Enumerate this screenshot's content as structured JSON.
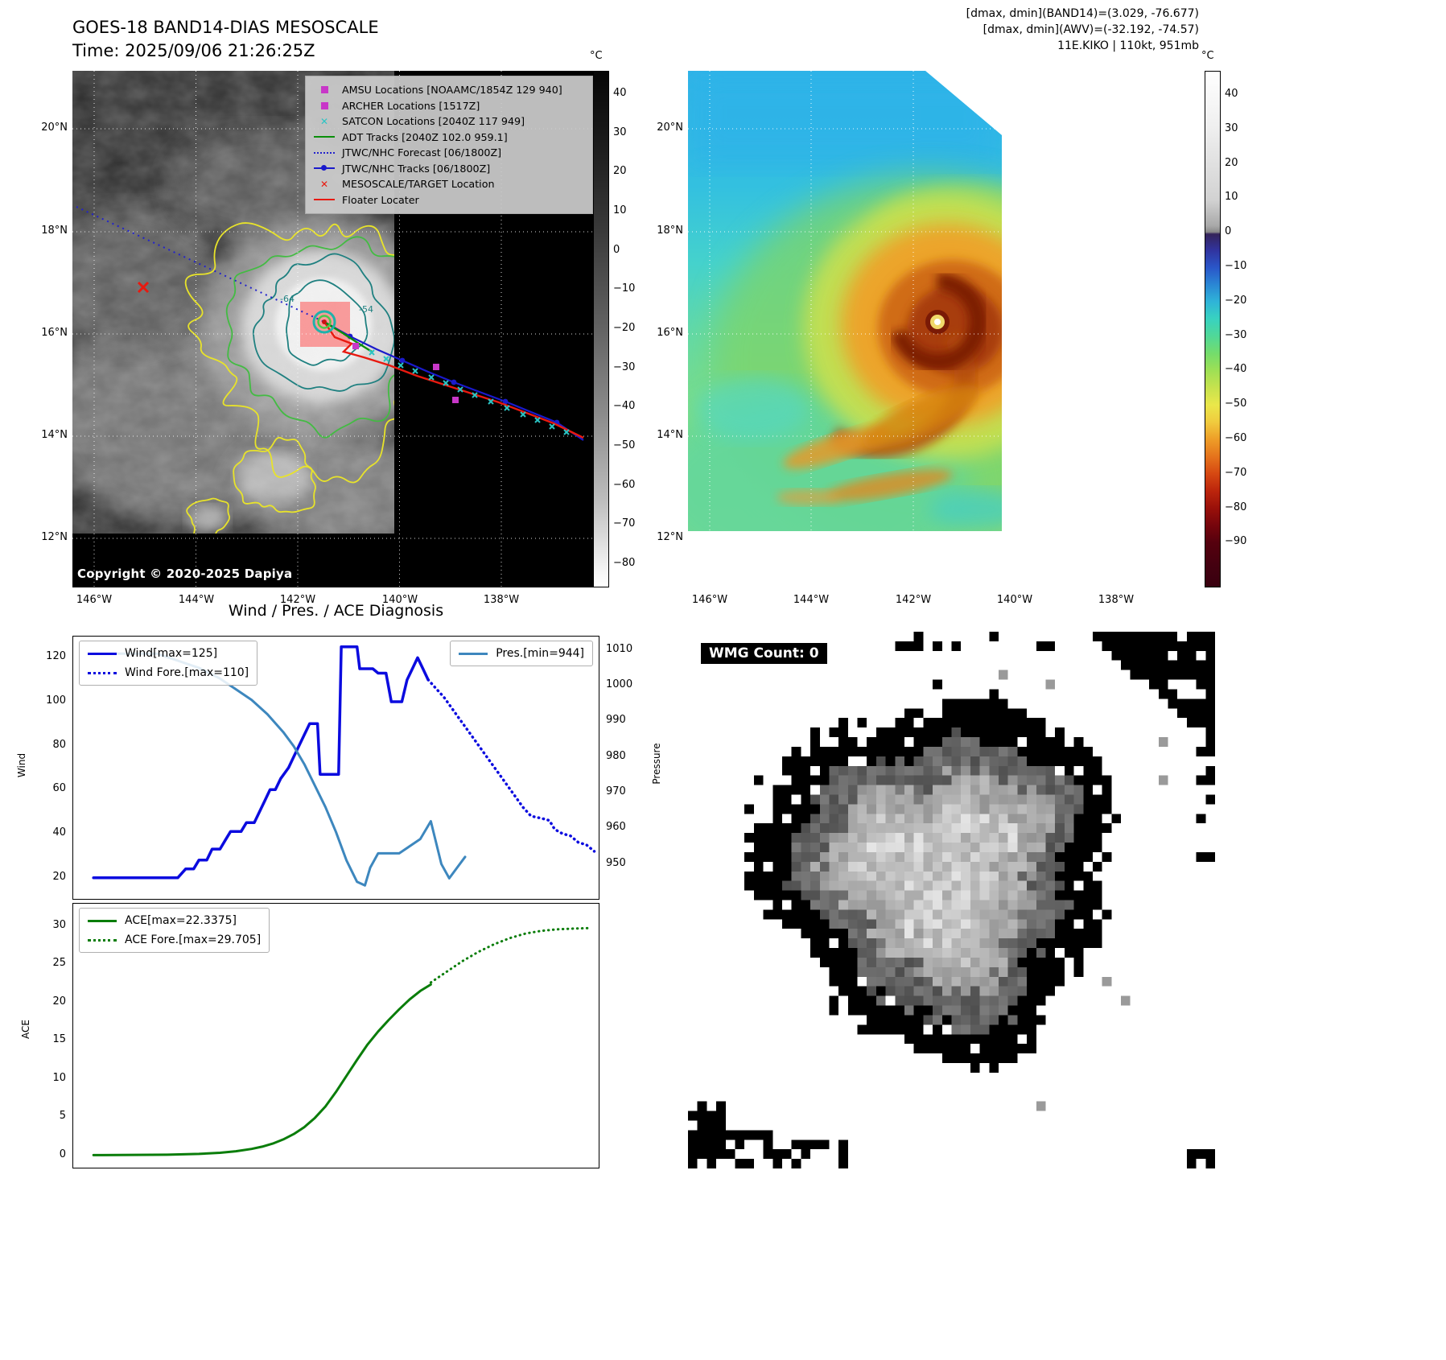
{
  "panel_ir": {
    "title": "GOES-18 BAND14-DIAS MESOSCALE",
    "time_line": "Time: 2025/09/06 21:26:25Z",
    "copyright": "Copyright © 2020-2025 Dapiya",
    "colorbar": {
      "unit": "°C",
      "ticks": [
        40,
        30,
        20,
        10,
        0,
        -10,
        -20,
        -30,
        -40,
        -50,
        -60,
        -70,
        -80
      ]
    },
    "lat_ticks": [
      "20°N",
      "18°N",
      "16°N",
      "14°N",
      "12°N"
    ],
    "lon_ticks": [
      "146°W",
      "144°W",
      "142°W",
      "140°W",
      "138°W"
    ],
    "contour_labels": {
      "inner": "-64",
      "outer": "-54"
    },
    "legend": [
      {
        "marker": "square",
        "color": "#c837c8",
        "label": "AMSU Locations [NOAAMC/1854Z 129 940]"
      },
      {
        "marker": "square",
        "color": "#c837c8",
        "label": "ARCHER Locations [1517Z]"
      },
      {
        "marker": "x",
        "color": "#2ac4c4",
        "label": "SATCON Locations [2040Z 117 949]"
      },
      {
        "marker": "line",
        "color": "#0a8f0a",
        "label": "ADT Tracks [2040Z 102.0 959.1]"
      },
      {
        "marker": "dline",
        "color": "#2222cc",
        "label": "JTWC/NHC Forecast [06/1800Z]"
      },
      {
        "marker": "linedot",
        "color": "#1a1acc",
        "label": "JTWC/NHC Tracks [06/1800Z]"
      },
      {
        "marker": "x",
        "color": "#e8190f",
        "label": "MESOSCALE/TARGET Location"
      },
      {
        "marker": "line",
        "color": "#e8190f",
        "label": "Floater Locater"
      }
    ]
  },
  "panel_awv": {
    "header_lines": [
      "[dmax, dmin](BAND14)=(3.029, -76.677)",
      "[dmax, dmin](AWV)=(-32.192, -74.57)",
      "11E.KIKO | 110kt, 951mb"
    ],
    "colorbar": {
      "unit": "°C",
      "ticks": [
        40,
        30,
        20,
        10,
        0,
        -10,
        -20,
        -30,
        -40,
        -50,
        -60,
        -70,
        -80,
        -90
      ]
    },
    "lat_ticks": [
      "20°N",
      "18°N",
      "16°N",
      "14°N",
      "12°N"
    ],
    "lon_ticks": [
      "146°W",
      "144°W",
      "142°W",
      "140°W",
      "138°W"
    ]
  },
  "diagnosis": {
    "title": "Wind / Pres. / ACE Diagnosis",
    "wind_ylabel": "Wind",
    "pressure_ylabel": "Pressure",
    "ace_ylabel": "ACE"
  },
  "wmg": {
    "label": "WMG Count: 0"
  },
  "chart_data": [
    {
      "type": "line",
      "title": "Wind / Pres. / ACE Diagnosis",
      "xlim": [
        0,
        100
      ],
      "ylim": [
        10,
        130
      ],
      "y2lim": [
        940,
        1014
      ],
      "ylabel": "Wind",
      "y2label": "Pressure",
      "yticks": [
        20,
        40,
        60,
        80,
        100,
        120
      ],
      "y2ticks": [
        950,
        960,
        970,
        980,
        990,
        1000,
        1010
      ],
      "grid": false,
      "legend_position": "upper left / upper right",
      "series": [
        {
          "name": "Wind[max=125]",
          "axis": "y",
          "style": "solid",
          "color": "#0b0bdf",
          "width": 3.5,
          "points": [
            [
              4,
              20
            ],
            [
              20,
              20
            ],
            [
              21.5,
              24
            ],
            [
              23,
              24
            ],
            [
              24,
              28
            ],
            [
              25.5,
              28
            ],
            [
              26.5,
              33
            ],
            [
              28,
              33
            ],
            [
              29,
              37
            ],
            [
              30,
              41
            ],
            [
              32,
              41
            ],
            [
              33,
              45
            ],
            [
              34.5,
              45
            ],
            [
              35.5,
              50
            ],
            [
              36.5,
              55
            ],
            [
              37.5,
              60
            ],
            [
              38.5,
              60
            ],
            [
              39.5,
              65
            ],
            [
              41,
              70
            ],
            [
              42,
              75
            ],
            [
              43,
              80
            ],
            [
              44,
              85
            ],
            [
              45,
              90
            ],
            [
              46.5,
              90
            ],
            [
              47,
              67
            ],
            [
              50.5,
              67
            ],
            [
              51,
              125
            ],
            [
              54,
              125
            ],
            [
              54.5,
              115
            ],
            [
              57,
              115
            ],
            [
              58,
              113
            ],
            [
              59.5,
              113
            ],
            [
              60.5,
              100
            ],
            [
              62.5,
              100
            ],
            [
              63.5,
              110
            ],
            [
              64.5,
              115
            ],
            [
              65.5,
              120
            ],
            [
              66.5,
              115
            ],
            [
              67.5,
              110
            ]
          ]
        },
        {
          "name": "Wind Fore.[max=110]",
          "axis": "y",
          "style": "dotted",
          "color": "#0b0bdf",
          "width": 3.5,
          "points": [
            [
              67.5,
              110
            ],
            [
              69,
              106
            ],
            [
              70.5,
              102
            ],
            [
              72,
              97
            ],
            [
              73.5,
              92
            ],
            [
              75,
              87
            ],
            [
              76.5,
              82
            ],
            [
              78,
              77
            ],
            [
              79.5,
              72
            ],
            [
              81,
              67
            ],
            [
              82.5,
              62
            ],
            [
              84,
              57
            ],
            [
              85.5,
              52
            ],
            [
              87,
              48
            ],
            [
              89,
              47
            ],
            [
              90.5,
              46
            ],
            [
              91.5,
              42
            ],
            [
              93,
              40
            ],
            [
              94.5,
              39
            ],
            [
              96,
              36
            ],
            [
              97.5,
              35
            ],
            [
              99,
              32
            ]
          ]
        },
        {
          "name": "Pres.[min=944]",
          "axis": "y2",
          "style": "solid",
          "color": "#3d87be",
          "width": 3,
          "points": [
            [
              4,
              1009
            ],
            [
              16,
              1009
            ],
            [
              20,
              1007
            ],
            [
              24,
              1005
            ],
            [
              28,
              1002
            ],
            [
              31,
              999
            ],
            [
              34,
              996
            ],
            [
              37,
              992
            ],
            [
              40,
              987
            ],
            [
              42,
              983
            ],
            [
              44,
              978
            ],
            [
              46,
              972
            ],
            [
              48,
              966
            ],
            [
              50,
              959
            ],
            [
              52,
              951
            ],
            [
              54,
              945
            ],
            [
              55.5,
              944
            ],
            [
              56.5,
              949
            ],
            [
              58,
              953
            ],
            [
              62,
              953
            ],
            [
              64,
              955
            ],
            [
              66,
              957
            ],
            [
              68,
              962
            ],
            [
              70,
              950
            ],
            [
              71.5,
              946
            ],
            [
              73,
              949
            ],
            [
              74.5,
              952
            ]
          ]
        }
      ]
    },
    {
      "type": "line",
      "xlim": [
        0,
        100
      ],
      "ylim": [
        -1.7,
        33
      ],
      "ylabel": "ACE",
      "yticks": [
        0,
        5,
        10,
        15,
        20,
        25,
        30
      ],
      "grid": false,
      "legend_position": "upper left",
      "series": [
        {
          "name": "ACE[max=22.3375]",
          "axis": "y",
          "style": "solid",
          "color": "#0a7d0a",
          "width": 3,
          "points": [
            [
              4,
              0.05
            ],
            [
              18,
              0.1
            ],
            [
              24,
              0.2
            ],
            [
              28,
              0.35
            ],
            [
              31,
              0.55
            ],
            [
              34,
              0.85
            ],
            [
              36,
              1.15
            ],
            [
              38,
              1.55
            ],
            [
              40,
              2.1
            ],
            [
              42,
              2.8
            ],
            [
              44,
              3.7
            ],
            [
              46,
              4.9
            ],
            [
              48,
              6.4
            ],
            [
              50,
              8.3
            ],
            [
              52,
              10.4
            ],
            [
              54,
              12.5
            ],
            [
              56,
              14.5
            ],
            [
              58,
              16.2
            ],
            [
              60,
              17.7
            ],
            [
              62,
              19.1
            ],
            [
              64,
              20.4
            ],
            [
              66,
              21.5
            ],
            [
              68,
              22.3375
            ]
          ]
        },
        {
          "name": "ACE Fore.[max=29.705]",
          "axis": "y",
          "style": "dotted",
          "color": "#0a7d0a",
          "width": 3,
          "points": [
            [
              68,
              22.6
            ],
            [
              71,
              24.0
            ],
            [
              74,
              25.4
            ],
            [
              77,
              26.6
            ],
            [
              80,
              27.6
            ],
            [
              83,
              28.4
            ],
            [
              86,
              29.0
            ],
            [
              89,
              29.35
            ],
            [
              92,
              29.55
            ],
            [
              95,
              29.65
            ],
            [
              98,
              29.705
            ]
          ]
        }
      ]
    }
  ]
}
